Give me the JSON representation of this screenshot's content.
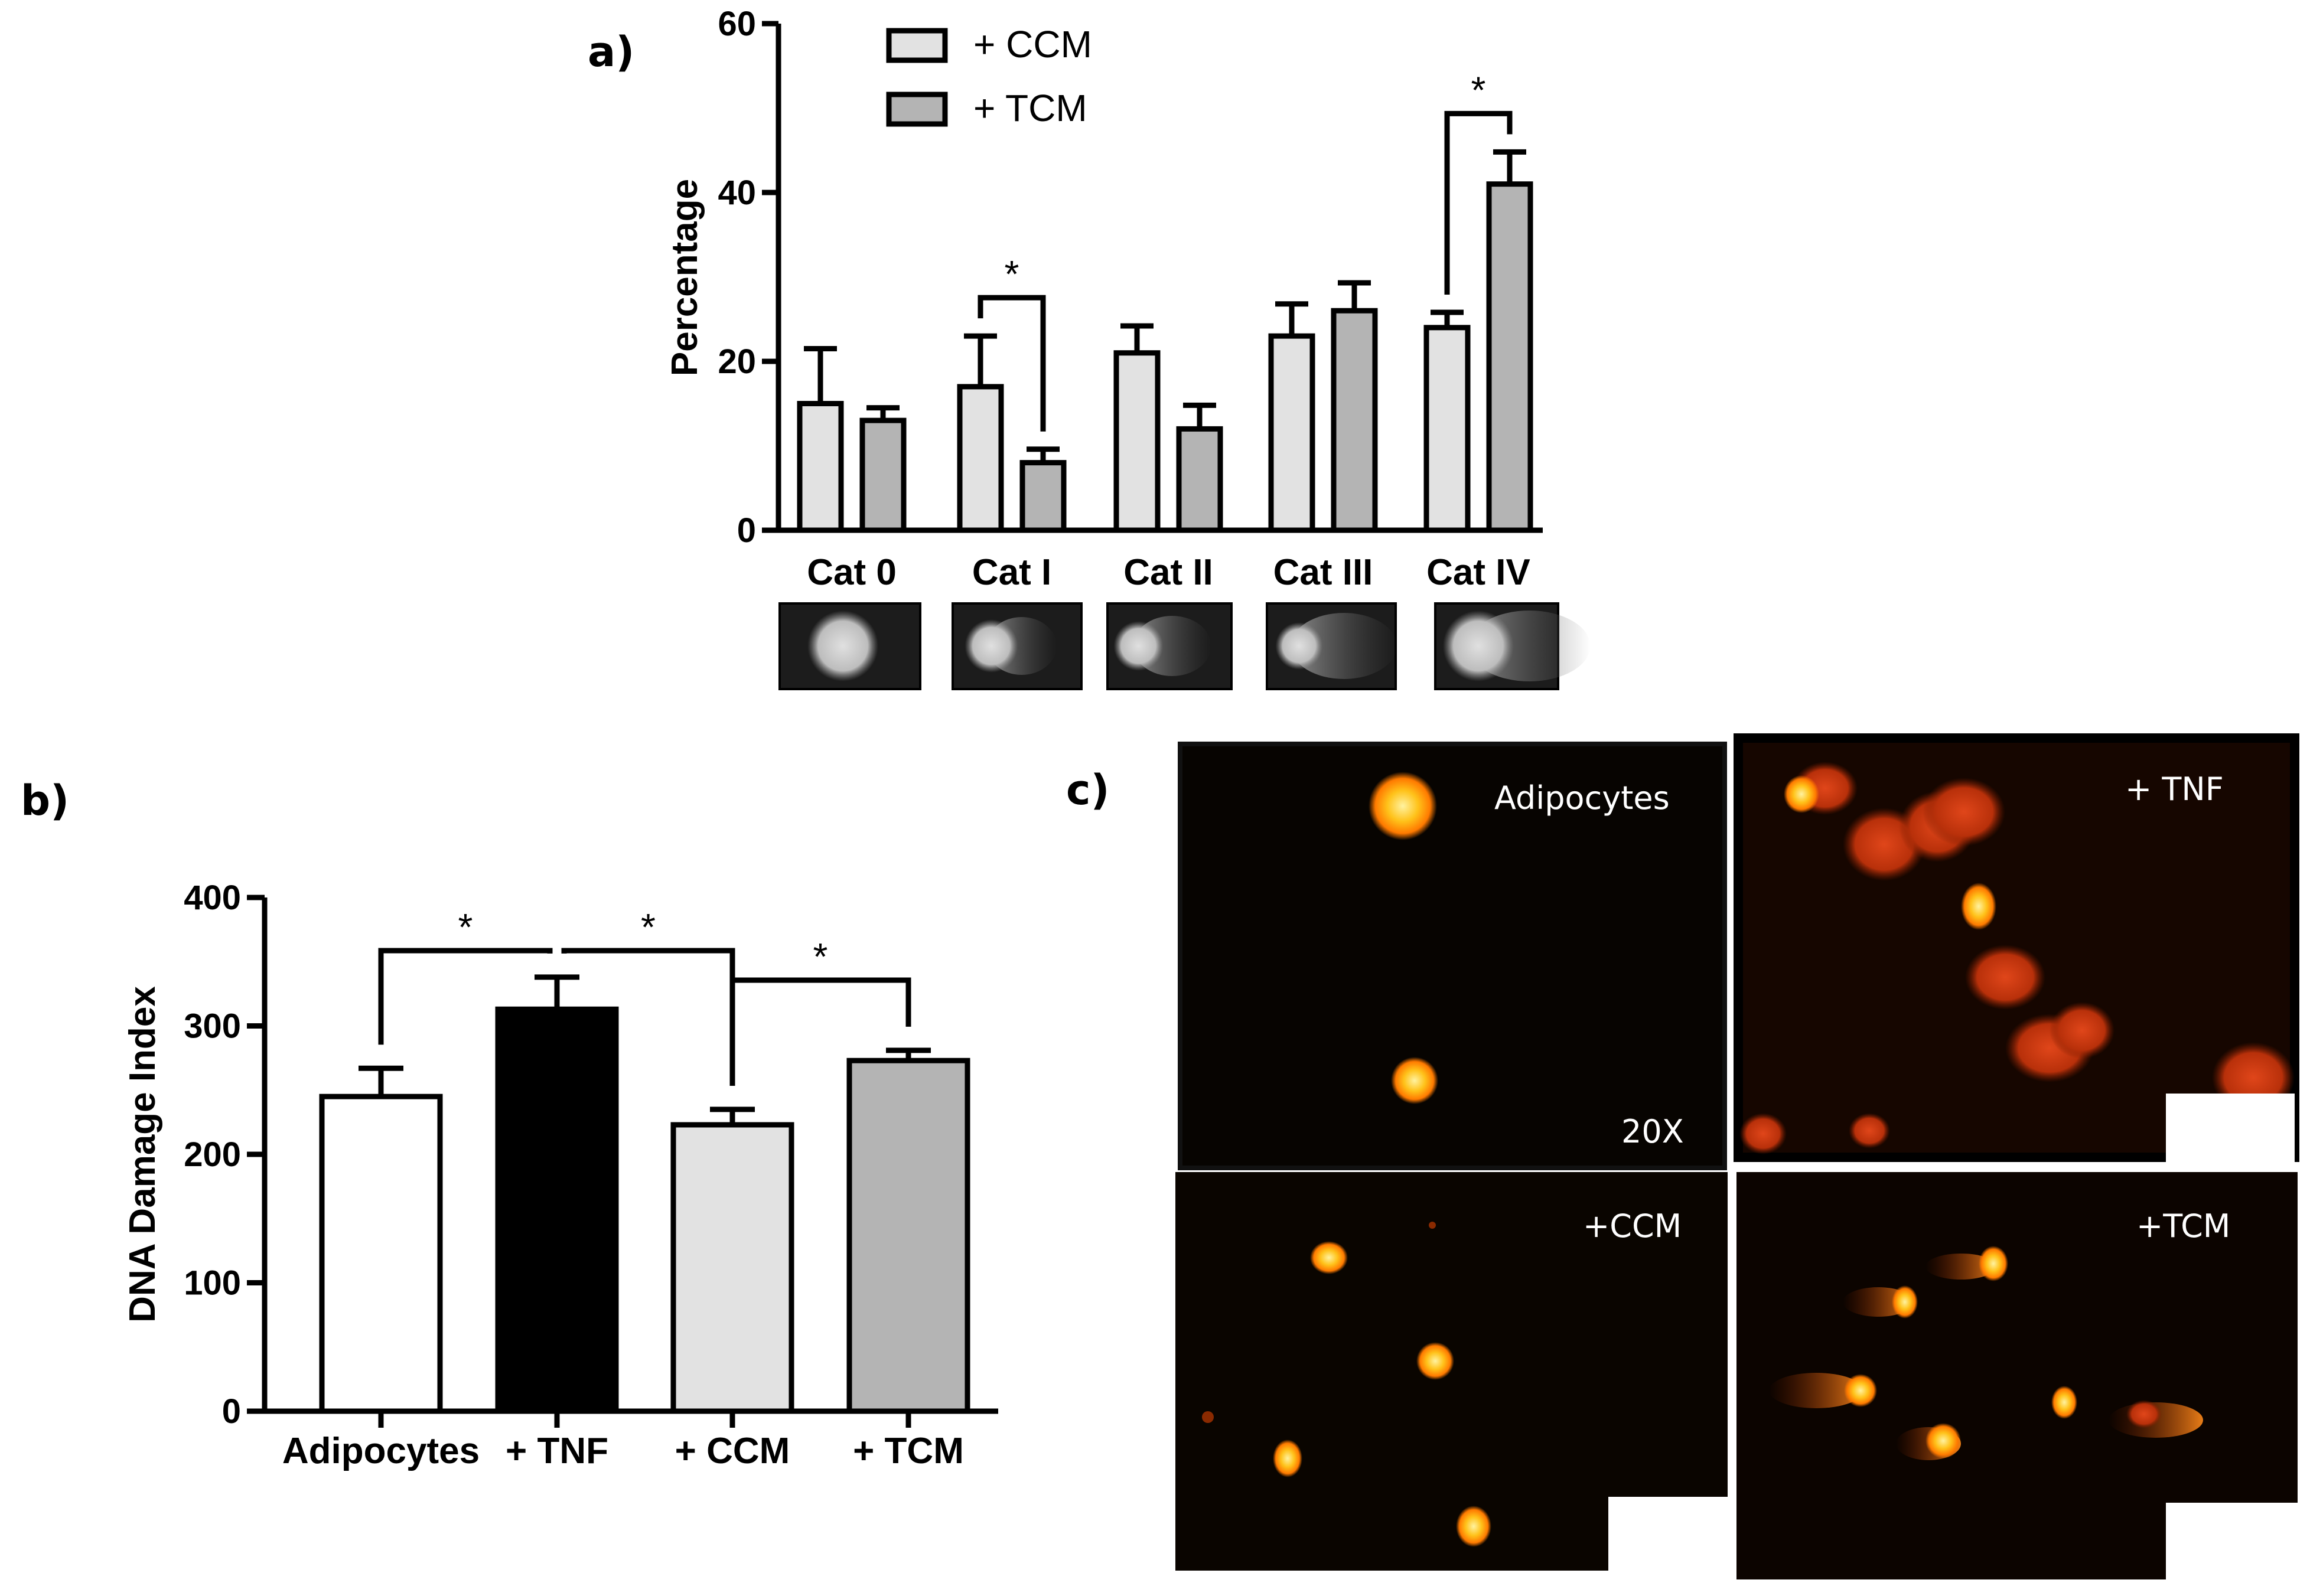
{
  "panel_labels": {
    "a": "a)",
    "b": "b)",
    "c": "c)"
  },
  "colors": {
    "ccm": "#e2e2e2",
    "tcm": "#b4b4b4",
    "adipocytes": "#ffffff",
    "tnf": "#000000",
    "stroke": "#000000",
    "micro_background": "#0a0500",
    "nucleus_core": "#ffe066",
    "nucleus_mid": "#ff9a1a",
    "nucleus_edge": "#c83c00"
  },
  "chart_data": [
    {
      "id": "panel_a",
      "type": "bar",
      "title": "",
      "xlabel": "",
      "ylabel": "Percentage",
      "ylim": [
        0,
        60
      ],
      "yticks": [
        "0",
        "20",
        "40",
        "60"
      ],
      "categories": [
        "Cat 0",
        "Cat I",
        "Cat II",
        "Cat III",
        "Cat IV"
      ],
      "series": [
        {
          "name": "+ CCM",
          "values": [
            15,
            17,
            21,
            23,
            24
          ],
          "errors": [
            6.5,
            6,
            3.2,
            3.8,
            1.8
          ]
        },
        {
          "name": "+ TCM",
          "values": [
            13,
            8,
            12,
            26,
            41
          ],
          "errors": [
            1.5,
            1.6,
            2.8,
            3.3,
            3.8
          ]
        }
      ],
      "legend_position": "top",
      "significance": [
        {
          "category": "Cat I",
          "label": "*"
        },
        {
          "category": "Cat IV",
          "label": "*"
        }
      ],
      "comet_thumbnails": [
        "Cat 0",
        "Cat I",
        "Cat II",
        "Cat III",
        "Cat IV"
      ]
    },
    {
      "id": "panel_b",
      "type": "bar",
      "title": "",
      "xlabel": "",
      "ylabel": "DNA Damage Index",
      "ylim": [
        0,
        400
      ],
      "yticks": [
        "0",
        "100",
        "200",
        "300",
        "400"
      ],
      "categories": [
        "Adipocytes",
        "+ TNF",
        "+ CCM",
        "+ TCM"
      ],
      "values": [
        245,
        313,
        223,
        273
      ],
      "errors": [
        22,
        25,
        12,
        8
      ],
      "significance": [
        {
          "from": "Adipocytes",
          "to": "+ TNF",
          "label": "*"
        },
        {
          "from": "+ TNF",
          "to": "+ CCM",
          "label": "*"
        },
        {
          "from": "+ CCM",
          "to": "+ TCM",
          "label": "*"
        }
      ]
    }
  ],
  "micrographs": {
    "adipocytes": {
      "label": "Adipocytes",
      "magnification": "20X"
    },
    "tnf": {
      "label": "+ TNF"
    },
    "ccm": {
      "label": "+CCM"
    },
    "tcm": {
      "label": "+TCM"
    }
  }
}
